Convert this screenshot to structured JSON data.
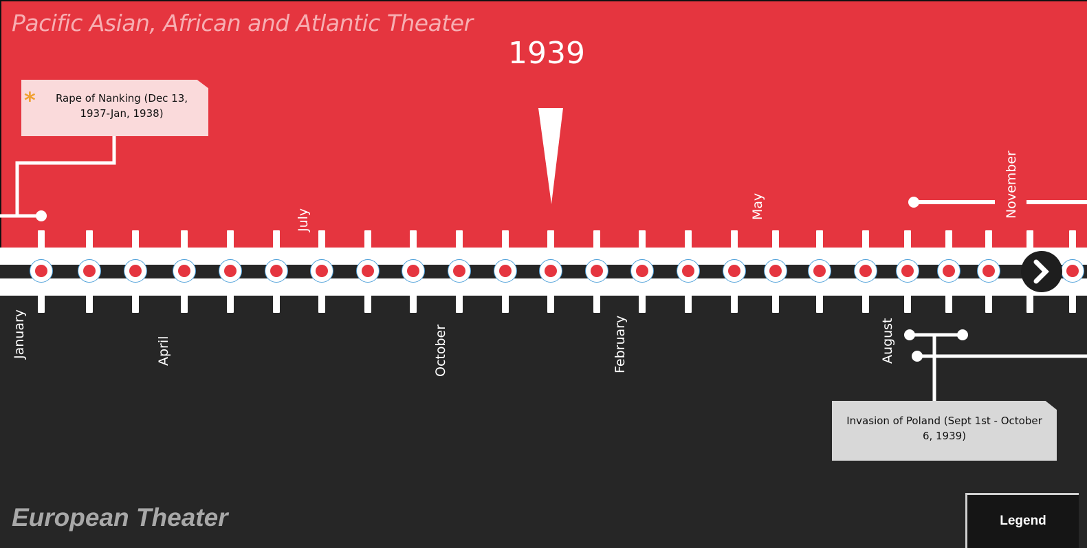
{
  "header": {
    "pacific_title": "Pacific Asian, African and Atlantic Theater",
    "year": "1939"
  },
  "footer": {
    "european_title": "European Theater"
  },
  "months_top": [
    "July",
    "May",
    "November"
  ],
  "months_bottom": [
    "January",
    "April",
    "October",
    "February",
    "August"
  ],
  "events": {
    "nanking": "Rape of Nanking (Dec 13, 1937-Jan, 1938)",
    "poland": "Invasion of Poland (Sept 1st - October 6, 1939)"
  },
  "legend_label": "Legend",
  "colors": {
    "pacific": "#e5353f",
    "european": "#262626",
    "accent": "#f0a030"
  },
  "icons": {
    "next": "chevron-right-icon",
    "asterisk": "asterisk-icon"
  }
}
